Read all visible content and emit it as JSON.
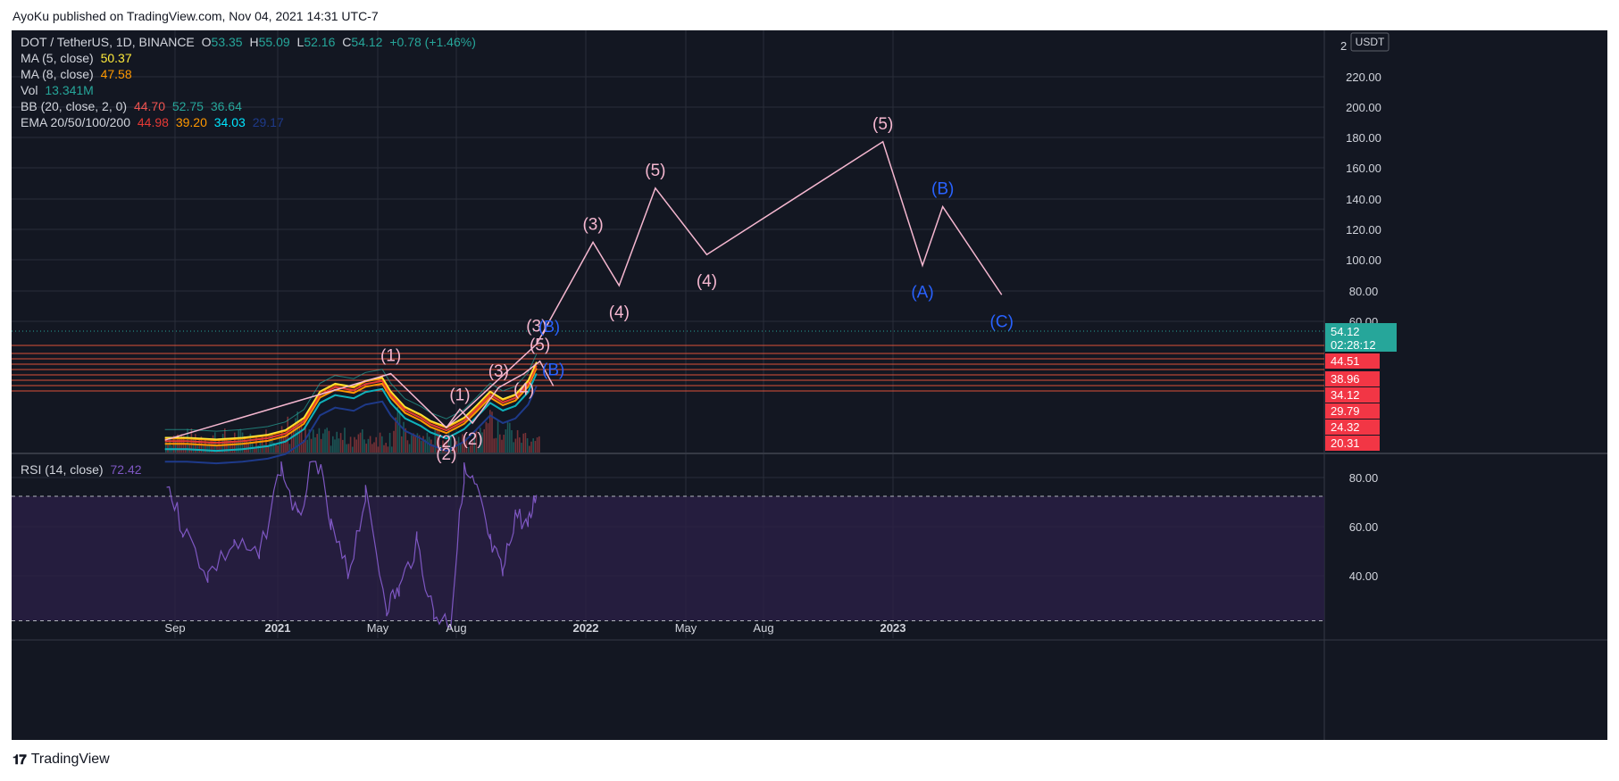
{
  "header": {
    "publisher": "AyoKu published on TradingView.com, Nov 04, 2021 14:31 UTC-7"
  },
  "footer": {
    "brand": "TradingView",
    "logo": "tradingview-logo"
  },
  "legend": {
    "symbol": "DOT / TetherUS, 1D, BINANCE",
    "open_label": "O",
    "open": "53.35",
    "high_label": "H",
    "high": "55.09",
    "low_label": "L",
    "low": "52.16",
    "close_label": "C",
    "close": "54.12",
    "change": "+0.78 (+1.46%)",
    "ma5_label": "MA (5, close)",
    "ma5": "50.37",
    "ma8_label": "MA (8, close)",
    "ma8": "47.58",
    "vol_label": "Vol",
    "vol": "13.341M",
    "bb_label": "BB (20, close, 2, 0)",
    "bb_basis": "44.70",
    "bb_upper": "52.75",
    "bb_lower": "36.64",
    "ema_label": "EMA 20/50/100/200",
    "ema20": "44.98",
    "ema50": "39.20",
    "ema100": "34.03",
    "ema200": "29.17",
    "rsi_label": "RSI (14, close)",
    "rsi": "72.42"
  },
  "colors": {
    "background": "#131722",
    "grid": "#2a2e39",
    "text": "#d1d4dc",
    "up": "#26a69a",
    "down": "#ef5350",
    "wave_pink": "#f5b7d0",
    "wave_blue": "#2962ff",
    "rsi_line": "#7e57c2",
    "rsi_band": "#2a1f46",
    "ma5": "#ffeb3b",
    "ma8": "#ff9800",
    "ema20": "#e53935",
    "ema50": "#ff9800",
    "ema100": "#00bcd4",
    "ema200": "#1e3a8a",
    "level_line": "#ff5a3c",
    "last_price_bg": "#26a69a"
  },
  "chart_data": {
    "type": "line",
    "title": "DOT / TetherUS, 1D, BINANCE",
    "currency": "USDT",
    "x_ticks": [
      "Sep",
      "2021",
      "May",
      "Aug",
      "2022",
      "May",
      "Aug",
      "2023"
    ],
    "y_ticks": [
      "220.00",
      "200.00",
      "180.00",
      "160.00",
      "140.00",
      "120.00",
      "100.00",
      "80.00",
      "60.00"
    ],
    "y_partial_tick": "2",
    "price_series": {
      "name": "DOT / TetherUS",
      "x": [
        "2020-08-20",
        "2020-09-15",
        "2020-10-20",
        "2020-11-20",
        "2020-12-20",
        "2021-01-10",
        "2021-02-01",
        "2021-02-20",
        "2021-03-10",
        "2021-04-01",
        "2021-04-15",
        "2021-05-05",
        "2021-05-15",
        "2021-06-01",
        "2021-06-20",
        "2021-07-01",
        "2021-07-20",
        "2021-08-10",
        "2021-08-25",
        "2021-09-10",
        "2021-09-25",
        "2021-10-10",
        "2021-10-25",
        "2021-11-04"
      ],
      "y": [
        5,
        5,
        4,
        5,
        7,
        10,
        18,
        35,
        40,
        38,
        42,
        44,
        35,
        25,
        20,
        16,
        12,
        18,
        26,
        35,
        30,
        33,
        42,
        54
      ]
    },
    "wave_primary": {
      "x": [
        "2020-08-20",
        "2021-05-15",
        "2021-07-20",
        "2021-11-04",
        "2022-01-10",
        "2022-02-10",
        "2022-03-25",
        "2022-05-25",
        "2022-12-20",
        "2023-02-05",
        "2023-03-01",
        "2023-05-10"
      ],
      "y": [
        4,
        47,
        12,
        66,
        132,
        104,
        167,
        124,
        197,
        117,
        155,
        98
      ],
      "labels": [
        "",
        "(1)",
        "(2)",
        "(3)",
        "(3)",
        "(4)",
        "(5)",
        "(4)",
        "(5)",
        "(A)",
        "(B)",
        "(C)"
      ]
    },
    "wave_sub": {
      "x": [
        "2021-07-20",
        "2021-08-05",
        "2021-08-20",
        "2021-09-20",
        "2021-10-20",
        "2021-11-08",
        "2021-11-24"
      ],
      "y": [
        12,
        24,
        15,
        38,
        47,
        55,
        39
      ],
      "labels": [
        "(2)",
        "(1)",
        "(2)",
        "(3)",
        "(4)",
        "(5)",
        "(B)"
      ]
    },
    "price_levels": [
      "44.51",
      "38.96",
      "34.12",
      "29.79",
      "24.32",
      "20.31"
    ],
    "last_price": {
      "value": "54.12",
      "countdown": "02:28:12"
    },
    "rsi": {
      "name": "RSI (14, close)",
      "y_ticks": [
        "80.00",
        "60.00",
        "40.00"
      ],
      "ylim": [
        25,
        88
      ],
      "bands": [
        70,
        30
      ],
      "x": [
        "2020-08-22",
        "2020-09-10",
        "2020-10-10",
        "2020-11-10",
        "2020-12-10",
        "2021-01-05",
        "2021-01-25",
        "2021-02-15",
        "2021-03-05",
        "2021-03-25",
        "2021-04-15",
        "2021-05-10",
        "2021-05-25",
        "2021-06-15",
        "2021-07-05",
        "2021-07-25",
        "2021-08-10",
        "2021-08-25",
        "2021-09-10",
        "2021-09-25",
        "2021-10-10",
        "2021-10-25",
        "2021-11-04"
      ],
      "y": [
        75,
        60,
        45,
        55,
        50,
        80,
        62,
        85,
        60,
        45,
        70,
        35,
        40,
        55,
        32,
        30,
        78,
        72,
        55,
        45,
        65,
        60,
        72
      ]
    }
  }
}
